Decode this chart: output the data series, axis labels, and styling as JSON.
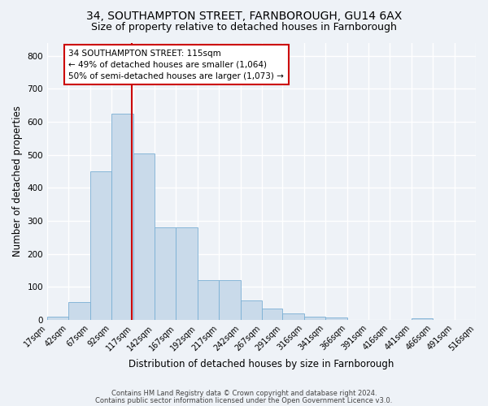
{
  "title1": "34, SOUTHAMPTON STREET, FARNBOROUGH, GU14 6AX",
  "title2": "Size of property relative to detached houses in Farnborough",
  "xlabel": "Distribution of detached houses by size in Farnborough",
  "ylabel": "Number of detached properties",
  "bin_edges": [
    17,
    42,
    67,
    92,
    117,
    142,
    167,
    192,
    217,
    242,
    267,
    291,
    316,
    341,
    366,
    391,
    416,
    441,
    466,
    491,
    516
  ],
  "bar_heights": [
    10,
    55,
    450,
    625,
    505,
    280,
    280,
    120,
    120,
    60,
    35,
    20,
    10,
    7,
    0,
    0,
    0,
    5,
    0,
    0
  ],
  "bar_color": "#c9daea",
  "bar_edge_color": "#7aafd4",
  "property_value": 115,
  "vline_color": "#cc0000",
  "annotation_text": "34 SOUTHAMPTON STREET: 115sqm\n← 49% of detached houses are smaller (1,064)\n50% of semi-detached houses are larger (1,073) →",
  "annotation_box_color": "#ffffff",
  "annotation_box_edge": "#cc0000",
  "footnote1": "Contains HM Land Registry data © Crown copyright and database right 2024.",
  "footnote2": "Contains public sector information licensed under the Open Government Licence v3.0.",
  "ylim": [
    0,
    840
  ],
  "yticks": [
    0,
    100,
    200,
    300,
    400,
    500,
    600,
    700,
    800
  ],
  "bg_color": "#eef2f7",
  "plot_bg_color": "#eef2f7",
  "grid_color": "#ffffff",
  "title1_fontsize": 10,
  "title2_fontsize": 9,
  "tick_label_fontsize": 7,
  "axis_label_fontsize": 8.5,
  "footnote_fontsize": 6,
  "annotation_fontsize": 7.5
}
